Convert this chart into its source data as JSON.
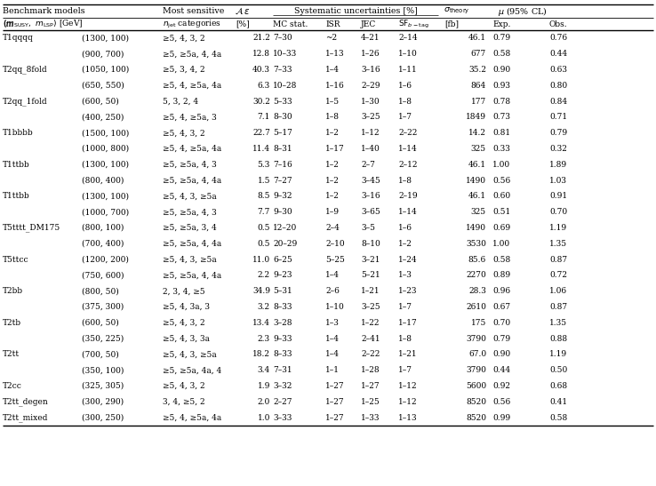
{
  "rows": [
    [
      "T1qqqq",
      "(1300, 100)",
      "≥5, 4, 3, 2",
      "21.2",
      "7–30",
      "~2",
      "4–21",
      "2–14",
      "46.1",
      "0.79",
      "0.76"
    ],
    [
      "",
      "(900, 700)",
      "≥5, ≥5a, 4, 4a",
      "12.8",
      "10–33",
      "1–13",
      "1–26",
      "1–10",
      "677",
      "0.58",
      "0.44"
    ],
    [
      "T2qq_8fold",
      "(1050, 100)",
      "≥5, 3, 4, 2",
      "40.3",
      "7–33",
      "1–4",
      "3–16",
      "1–11",
      "35.2",
      "0.90",
      "0.63"
    ],
    [
      "",
      "(650, 550)",
      "≥5, 4, ≥5a, 4a",
      "6.3",
      "10–28",
      "1–16",
      "2–29",
      "1–6",
      "864",
      "0.93",
      "0.80"
    ],
    [
      "T2qq_1fold",
      "(600, 50)",
      "5, 3, 2, 4",
      "30.2",
      "5–33",
      "1–5",
      "1–30",
      "1–8",
      "177",
      "0.78",
      "0.84"
    ],
    [
      "",
      "(400, 250)",
      "≥5, 4, ≥5a, 3",
      "7.1",
      "8–30",
      "1–8",
      "3–25",
      "1–7",
      "1849",
      "0.73",
      "0.71"
    ],
    [
      "T1bbbb",
      "(1500, 100)",
      "≥5, 4, 3, 2",
      "22.7",
      "5–17",
      "1–2",
      "1–12",
      "2–22",
      "14.2",
      "0.81",
      "0.79"
    ],
    [
      "",
      "(1000, 800)",
      "≥5, 4, ≥5a, 4a",
      "11.4",
      "8–31",
      "1–17",
      "1–40",
      "1–14",
      "325",
      "0.33",
      "0.32"
    ],
    [
      "T1ttbb",
      "(1300, 100)",
      "≥5, ≥5a, 4, 3",
      "5.3",
      "7–16",
      "1–2",
      "2–7",
      "2–12",
      "46.1",
      "1.00",
      "1.89"
    ],
    [
      "",
      "(800, 400)",
      "≥5, ≥5a, 4, 4a",
      "1.5",
      "7–27",
      "1–2",
      "3–45",
      "1–8",
      "1490",
      "0.56",
      "1.03"
    ],
    [
      "T1ttbb",
      "(1300, 100)",
      "≥5, 4, 3, ≥5a",
      "8.5",
      "9–32",
      "1–2",
      "3–16",
      "2–19",
      "46.1",
      "0.60",
      "0.91"
    ],
    [
      "",
      "(1000, 700)",
      "≥5, ≥5a, 4, 3",
      "7.7",
      "9–30",
      "1–9",
      "3–65",
      "1–14",
      "325",
      "0.51",
      "0.70"
    ],
    [
      "T5tttt_DM175",
      "(800, 100)",
      "≥5, ≥5a, 3, 4",
      "0.5",
      "12–20",
      "2–4",
      "3–5",
      "1–6",
      "1490",
      "0.69",
      "1.19"
    ],
    [
      "",
      "(700, 400)",
      "≥5, ≥5a, 4, 4a",
      "0.5",
      "20–29",
      "2–10",
      "8–10",
      "1–2",
      "3530",
      "1.00",
      "1.35"
    ],
    [
      "T5ttcc",
      "(1200, 200)",
      "≥5, 4, 3, ≥5a",
      "11.0",
      "6–25",
      "5–25",
      "3–21",
      "1–24",
      "85.6",
      "0.58",
      "0.87"
    ],
    [
      "",
      "(750, 600)",
      "≥5, ≥5a, 4, 4a",
      "2.2",
      "9–23",
      "1–4",
      "5–21",
      "1–3",
      "2270",
      "0.89",
      "0.72"
    ],
    [
      "T2bb",
      "(800, 50)",
      "2, 3, 4, ≥5",
      "34.9",
      "5–31",
      "2–6",
      "1–21",
      "1–23",
      "28.3",
      "0.96",
      "1.06"
    ],
    [
      "",
      "(375, 300)",
      "≥5, 4, 3a, 3",
      "3.2",
      "8–33",
      "1–10",
      "3–25",
      "1–7",
      "2610",
      "0.67",
      "0.87"
    ],
    [
      "T2tb",
      "(600, 50)",
      "≥5, 4, 3, 2",
      "13.4",
      "3–28",
      "1–3",
      "1–22",
      "1–17",
      "175",
      "0.70",
      "1.35"
    ],
    [
      "",
      "(350, 225)",
      "≥5, 4, 3, 3a",
      "2.3",
      "9–33",
      "1–4",
      "2–41",
      "1–8",
      "3790",
      "0.79",
      "0.88"
    ],
    [
      "T2tt",
      "(700, 50)",
      "≥5, 4, 3, ≥5a",
      "18.2",
      "8–33",
      "1–4",
      "2–22",
      "1–21",
      "67.0",
      "0.90",
      "1.19"
    ],
    [
      "",
      "(350, 100)",
      "≥5, ≥5a, 4a, 4",
      "3.4",
      "7–31",
      "1–1",
      "1–28",
      "1–7",
      "3790",
      "0.44",
      "0.50"
    ],
    [
      "T2cc",
      "(325, 305)",
      "≥5, 4, 3, 2",
      "1.9",
      "3–32",
      "1–27",
      "1–27",
      "1–12",
      "5600",
      "0.92",
      "0.68"
    ],
    [
      "T2tt_degen",
      "(300, 290)",
      "3, 4, ≥5, 2",
      "2.0",
      "2–27",
      "1–27",
      "1–25",
      "1–12",
      "8520",
      "0.56",
      "0.41"
    ],
    [
      "T2tt_mixed",
      "(300, 250)",
      "≥5, 4, ≥5a, 4a",
      "1.0",
      "3–33",
      "1–27",
      "1–33",
      "1–13",
      "8520",
      "0.99",
      "0.58"
    ]
  ],
  "bg_color": "#ffffff",
  "font_size": 6.5,
  "header_font_size": 6.8
}
